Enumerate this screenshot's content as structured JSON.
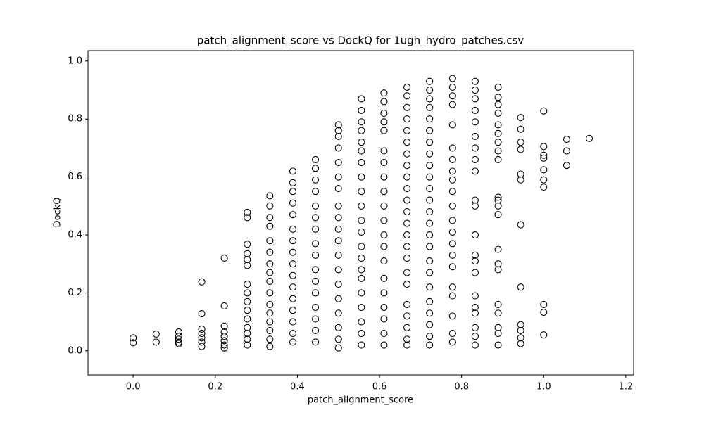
{
  "chart_data": {
    "type": "scatter",
    "title": "patch_alignment_score vs DockQ for 1ugh_hydro_patches.csv",
    "xlabel": "patch_alignment_score",
    "ylabel": "DockQ",
    "xlim": [
      -0.11,
      1.219
    ],
    "ylim": [
      -0.083,
      1.036
    ],
    "xticks": [
      {
        "value": 0,
        "label": "0.0"
      },
      {
        "value": 0.2,
        "label": "0.2"
      },
      {
        "value": 0.4,
        "label": "0.4"
      },
      {
        "value": 0.6,
        "label": "0.6"
      },
      {
        "value": 0.8,
        "label": "0.8"
      },
      {
        "value": 1,
        "label": "1.0"
      },
      {
        "value": 1.2,
        "label": "1.2"
      }
    ],
    "yticks": [
      {
        "value": 0,
        "label": "0.0"
      },
      {
        "value": 0.2,
        "label": "0.2"
      },
      {
        "value": 0.4,
        "label": "0.4"
      },
      {
        "value": 0.6,
        "label": "0.6"
      },
      {
        "value": 0.8,
        "label": "0.8"
      },
      {
        "value": 1,
        "label": "1.0"
      }
    ],
    "color": "#000000",
    "x": [
      0,
      0,
      0.056,
      0.056,
      0.111,
      0.111,
      0.111,
      0.111,
      0.111,
      0.167,
      0.167,
      0.167,
      0.167,
      0.167,
      0.167,
      0.167,
      0.222,
      0.222,
      0.222,
      0.222,
      0.222,
      0.222,
      0.222,
      0.222,
      0.278,
      0.278,
      0.278,
      0.278,
      0.278,
      0.278,
      0.278,
      0.278,
      0.278,
      0.278,
      0.278,
      0.278,
      0.278,
      0.278,
      0.278,
      0.333,
      0.333,
      0.333,
      0.333,
      0.333,
      0.333,
      0.333,
      0.333,
      0.333,
      0.333,
      0.333,
      0.333,
      0.333,
      0.333,
      0.333,
      0.333,
      0.389,
      0.389,
      0.389,
      0.389,
      0.389,
      0.389,
      0.389,
      0.389,
      0.389,
      0.389,
      0.389,
      0.389,
      0.389,
      0.389,
      0.389,
      0.389,
      0.444,
      0.444,
      0.444,
      0.444,
      0.444,
      0.444,
      0.444,
      0.444,
      0.444,
      0.444,
      0.444,
      0.444,
      0.444,
      0.444,
      0.444,
      0.444,
      0.5,
      0.5,
      0.5,
      0.5,
      0.5,
      0.5,
      0.5,
      0.5,
      0.5,
      0.5,
      0.5,
      0.5,
      0.5,
      0.5,
      0.5,
      0.5,
      0.5,
      0.5,
      0.5,
      0.556,
      0.556,
      0.556,
      0.556,
      0.556,
      0.556,
      0.556,
      0.556,
      0.556,
      0.556,
      0.556,
      0.556,
      0.556,
      0.556,
      0.556,
      0.556,
      0.556,
      0.556,
      0.556,
      0.556,
      0.556,
      0.611,
      0.611,
      0.611,
      0.611,
      0.611,
      0.611,
      0.611,
      0.611,
      0.611,
      0.611,
      0.611,
      0.611,
      0.611,
      0.611,
      0.611,
      0.611,
      0.611,
      0.611,
      0.611,
      0.611,
      0.667,
      0.667,
      0.667,
      0.667,
      0.667,
      0.667,
      0.667,
      0.667,
      0.667,
      0.667,
      0.667,
      0.667,
      0.667,
      0.667,
      0.667,
      0.667,
      0.667,
      0.667,
      0.667,
      0.667,
      0.667,
      0.667,
      0.667,
      0.722,
      0.722,
      0.722,
      0.722,
      0.722,
      0.722,
      0.722,
      0.722,
      0.722,
      0.722,
      0.722,
      0.722,
      0.722,
      0.722,
      0.722,
      0.722,
      0.722,
      0.722,
      0.722,
      0.722,
      0.722,
      0.722,
      0.722,
      0.722,
      0.778,
      0.778,
      0.778,
      0.778,
      0.778,
      0.778,
      0.778,
      0.778,
      0.778,
      0.778,
      0.778,
      0.778,
      0.778,
      0.778,
      0.778,
      0.778,
      0.778,
      0.778,
      0.778,
      0.778,
      0.778,
      0.833,
      0.833,
      0.833,
      0.833,
      0.833,
      0.833,
      0.833,
      0.833,
      0.833,
      0.833,
      0.833,
      0.833,
      0.833,
      0.833,
      0.833,
      0.833,
      0.833,
      0.833,
      0.833,
      0.833,
      0.833,
      0.889,
      0.889,
      0.889,
      0.889,
      0.889,
      0.889,
      0.889,
      0.889,
      0.889,
      0.889,
      0.889,
      0.889,
      0.889,
      0.889,
      0.889,
      0.889,
      0.889,
      0.889,
      0.889,
      0.889,
      0.889,
      0.944,
      0.944,
      0.944,
      0.944,
      0.944,
      0.944,
      0.944,
      0.944,
      0.944,
      0.944,
      0.944,
      0.944,
      1.0,
      1.0,
      1.0,
      1.0,
      1.0,
      1.0,
      1.0,
      1.0,
      1.0,
      1.0,
      1.056,
      1.056,
      1.056,
      1.111
    ],
    "y": [
      0.045,
      0.028,
      0.058,
      0.03,
      0.065,
      0.05,
      0.04,
      0.03,
      0.025,
      0.238,
      0.128,
      0.075,
      0.06,
      0.045,
      0.03,
      0.015,
      0.32,
      0.155,
      0.085,
      0.065,
      0.05,
      0.035,
      0.02,
      0.01,
      0.478,
      0.46,
      0.368,
      0.335,
      0.315,
      0.295,
      0.23,
      0.2,
      0.17,
      0.14,
      0.11,
      0.08,
      0.06,
      0.04,
      0.02,
      0.535,
      0.5,
      0.46,
      0.43,
      0.38,
      0.34,
      0.3,
      0.27,
      0.24,
      0.2,
      0.16,
      0.13,
      0.1,
      0.07,
      0.04,
      0.015,
      0.62,
      0.58,
      0.55,
      0.51,
      0.47,
      0.42,
      0.38,
      0.34,
      0.3,
      0.26,
      0.22,
      0.18,
      0.14,
      0.1,
      0.06,
      0.03,
      0.66,
      0.63,
      0.59,
      0.55,
      0.5,
      0.46,
      0.42,
      0.37,
      0.33,
      0.28,
      0.24,
      0.2,
      0.15,
      0.11,
      0.07,
      0.03,
      0.78,
      0.76,
      0.74,
      0.7,
      0.65,
      0.6,
      0.56,
      0.5,
      0.46,
      0.42,
      0.38,
      0.33,
      0.28,
      0.23,
      0.18,
      0.13,
      0.08,
      0.04,
      0.01,
      0.87,
      0.83,
      0.79,
      0.76,
      0.72,
      0.69,
      0.65,
      0.6,
      0.55,
      0.5,
      0.45,
      0.41,
      0.36,
      0.32,
      0.28,
      0.25,
      0.2,
      0.15,
      0.1,
      0.06,
      0.02,
      0.89,
      0.86,
      0.82,
      0.79,
      0.76,
      0.69,
      0.65,
      0.6,
      0.55,
      0.5,
      0.45,
      0.4,
      0.36,
      0.31,
      0.25,
      0.2,
      0.15,
      0.11,
      0.06,
      0.02,
      0.91,
      0.88,
      0.84,
      0.8,
      0.76,
      0.72,
      0.68,
      0.64,
      0.6,
      0.56,
      0.52,
      0.48,
      0.44,
      0.4,
      0.36,
      0.32,
      0.27,
      0.23,
      0.16,
      0.12,
      0.08,
      0.04,
      0.02,
      0.93,
      0.9,
      0.87,
      0.84,
      0.8,
      0.76,
      0.72,
      0.68,
      0.64,
      0.6,
      0.56,
      0.52,
      0.48,
      0.44,
      0.4,
      0.36,
      0.31,
      0.27,
      0.22,
      0.17,
      0.13,
      0.09,
      0.05,
      0.02,
      0.94,
      0.91,
      0.88,
      0.85,
      0.78,
      0.7,
      0.66,
      0.62,
      0.59,
      0.55,
      0.5,
      0.45,
      0.41,
      0.37,
      0.33,
      0.29,
      0.22,
      0.19,
      0.12,
      0.06,
      0.03,
      0.93,
      0.9,
      0.87,
      0.83,
      0.79,
      0.74,
      0.7,
      0.66,
      0.62,
      0.52,
      0.5,
      0.4,
      0.33,
      0.31,
      0.27,
      0.19,
      0.15,
      0.13,
      0.08,
      0.05,
      0.02,
      0.91,
      0.875,
      0.85,
      0.82,
      0.78,
      0.75,
      0.72,
      0.69,
      0.66,
      0.53,
      0.52,
      0.5,
      0.47,
      0.35,
      0.3,
      0.28,
      0.16,
      0.13,
      0.08,
      0.06,
      0.02,
      0.805,
      0.765,
      0.72,
      0.695,
      0.61,
      0.59,
      0.435,
      0.22,
      0.09,
      0.07,
      0.045,
      0.025,
      0.828,
      0.705,
      0.675,
      0.665,
      0.625,
      0.59,
      0.565,
      0.16,
      0.133,
      0.055,
      0.73,
      0.69,
      0.64,
      0.733
    ]
  }
}
